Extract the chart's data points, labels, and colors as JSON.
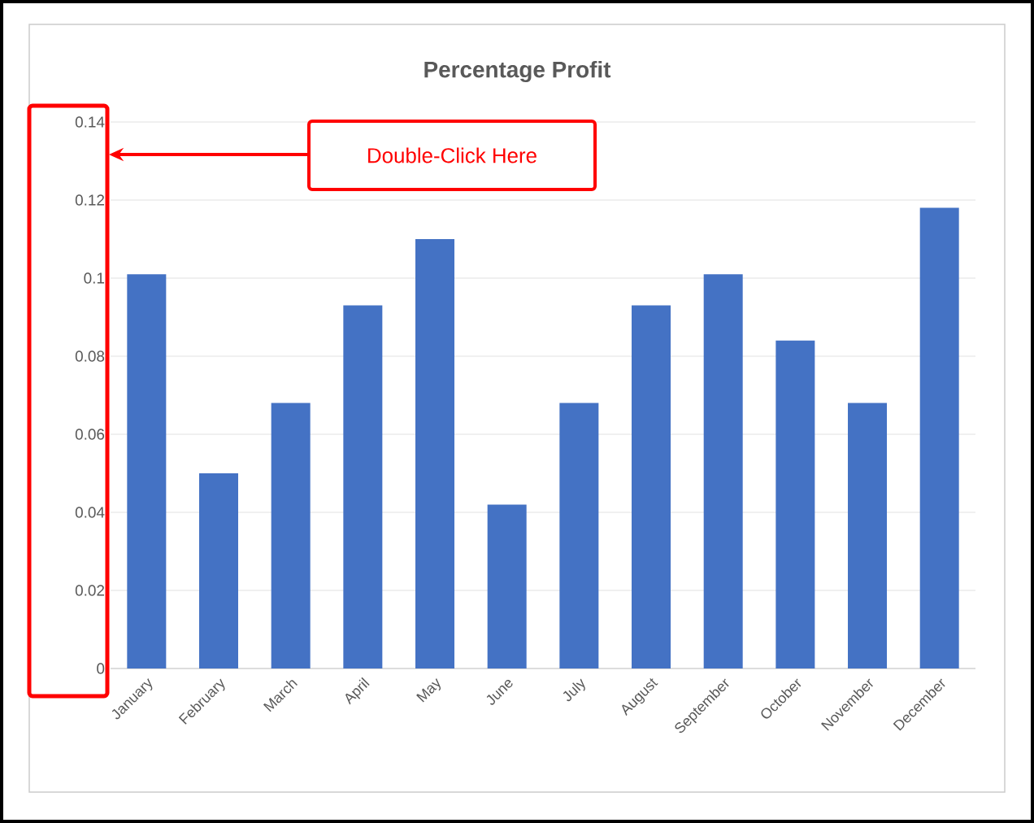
{
  "chart_data": {
    "type": "bar",
    "title": "Percentage Profit",
    "categories": [
      "January",
      "February",
      "March",
      "April",
      "May",
      "June",
      "July",
      "August",
      "September",
      "October",
      "November",
      "December"
    ],
    "values": [
      0.101,
      0.05,
      0.068,
      0.093,
      0.11,
      0.042,
      0.068,
      0.093,
      0.101,
      0.084,
      0.068,
      0.118
    ],
    "color": "#4472c4",
    "ylim": [
      0,
      0.14
    ],
    "yticks": [
      0,
      0.02,
      0.04,
      0.06,
      0.08,
      0.1,
      0.12,
      0.14
    ],
    "grid": "y",
    "annotations": [
      "Double-Click Here"
    ]
  }
}
